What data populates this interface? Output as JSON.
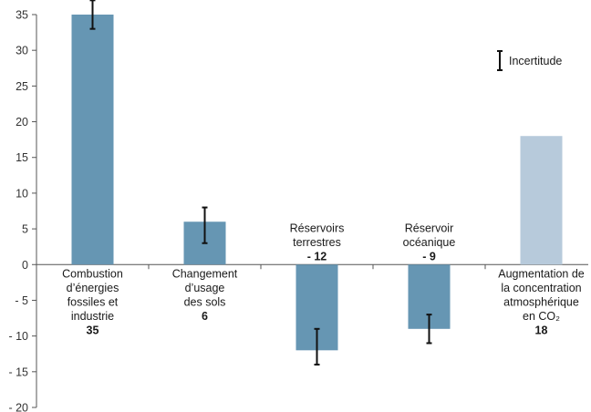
{
  "chart_data": {
    "type": "bar",
    "ylim": [
      -20,
      35
    ],
    "yticks": [
      35,
      30,
      25,
      20,
      15,
      10,
      5,
      0,
      -5,
      -10,
      -15,
      -20
    ],
    "ytick_labels": [
      "35",
      "30",
      "25",
      "20",
      "15",
      "10",
      "5",
      "0",
      "- 5",
      "- 10",
      "- 15",
      "- 20"
    ],
    "grid": false,
    "legend": {
      "position": "top-right",
      "label": "Incertitude"
    },
    "categories": [
      "Combustion d’énergies fossiles et industrie",
      "Changement d’usage des sols",
      "Réservoirs terrestres",
      "Réservoir océanique",
      "Augmentation de la concentration atmosphérique en CO₂"
    ],
    "values": [
      35,
      6,
      -12,
      -9,
      18
    ],
    "uncertainty": [
      [
        33,
        37
      ],
      [
        3,
        8
      ],
      [
        -14,
        -9
      ],
      [
        -11,
        -7
      ],
      null
    ],
    "colors": [
      "#6696b3",
      "#6696b3",
      "#6696b3",
      "#6696b3",
      "#b7cadb"
    ],
    "bars": [
      {
        "label_lines": [
          "Combustion",
          "d’énergies",
          "fossiles et",
          "industrie"
        ],
        "value_label": "35",
        "label_position": "below"
      },
      {
        "label_lines": [
          "Changement",
          "d’usage",
          "des sols"
        ],
        "value_label": "6",
        "label_position": "below"
      },
      {
        "label_lines": [
          "Réservoirs",
          "terrestres"
        ],
        "value_label": "- 12",
        "label_position": "above"
      },
      {
        "label_lines": [
          "Réservoir",
          "océanique"
        ],
        "value_label": "- 9",
        "label_position": "above"
      },
      {
        "label_lines": [
          "Augmentation de",
          "la concentration",
          "atmosphérique",
          "en CO₂"
        ],
        "value_label": "18",
        "label_position": "below"
      }
    ]
  }
}
